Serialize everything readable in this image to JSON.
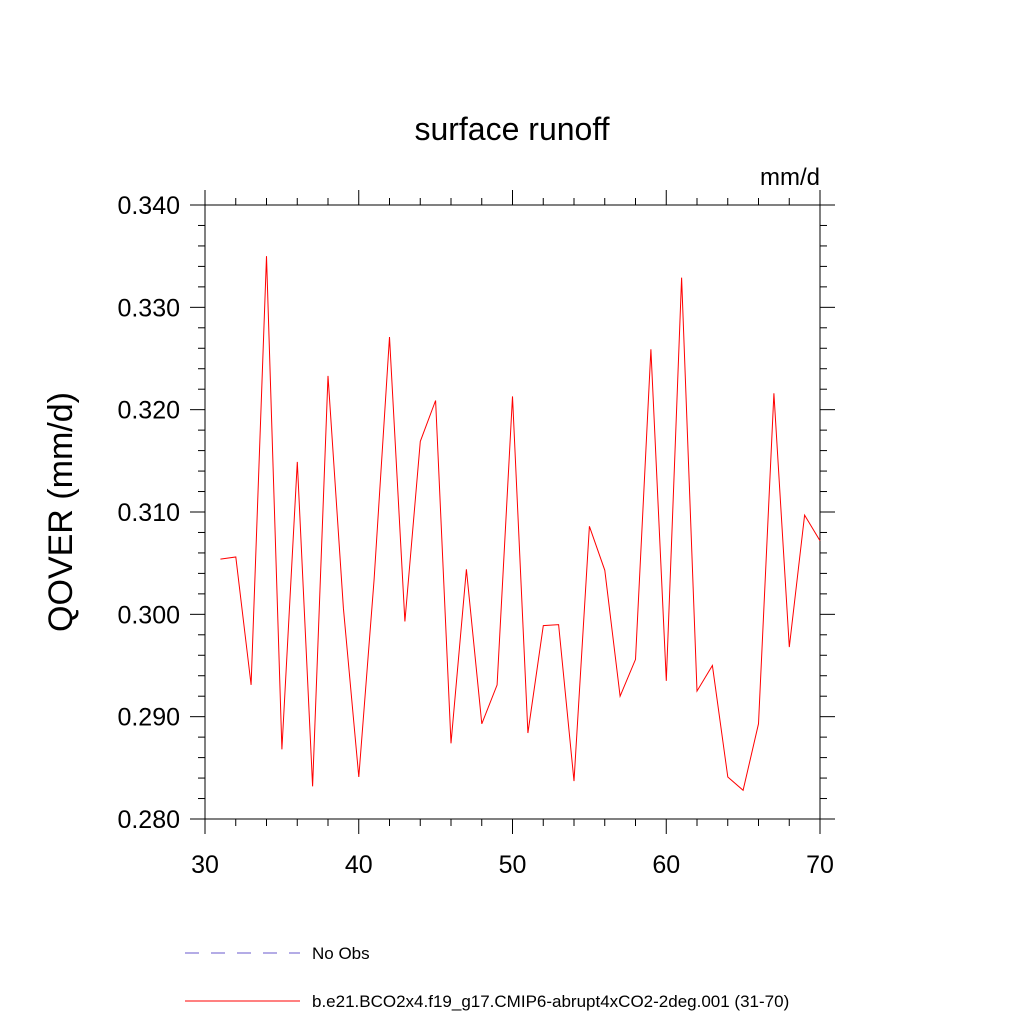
{
  "chart_data": {
    "type": "line",
    "title": "surface runoff",
    "units_label": "mm/d",
    "ylabel": "QOVER  (mm/d)",
    "xlabel": "",
    "xlim": [
      30,
      70
    ],
    "ylim": [
      0.28,
      0.34
    ],
    "x_ticks": [
      30,
      40,
      50,
      60,
      70
    ],
    "y_ticks": [
      "0.280",
      "0.290",
      "0.300",
      "0.310",
      "0.320",
      "0.330",
      "0.340"
    ],
    "x_tick_labels": [
      "30",
      "40",
      "50",
      "60",
      "70"
    ],
    "series": [
      {
        "name": "b.e21.BCO2x4.f19_g17.CMIP6-abrupt4xCO2-2deg.001 (31-70)",
        "color": "#ff0000",
        "x": [
          31,
          32,
          33,
          34,
          35,
          36,
          37,
          38,
          39,
          40,
          41,
          42,
          43,
          44,
          45,
          46,
          47,
          48,
          49,
          50,
          51,
          52,
          53,
          54,
          55,
          56,
          57,
          58,
          59,
          60,
          61,
          62,
          63,
          64,
          65,
          66,
          67,
          68,
          69,
          70
        ],
        "y": [
          0.3054,
          0.3056,
          0.2931,
          0.335,
          0.2868,
          0.3149,
          0.2832,
          0.3233,
          0.3006,
          0.2841,
          0.3034,
          0.3271,
          0.2993,
          0.3169,
          0.3209,
          0.2874,
          0.3044,
          0.2893,
          0.2931,
          0.3213,
          0.2884,
          0.2989,
          0.299,
          0.2837,
          0.3086,
          0.3043,
          0.292,
          0.2956,
          0.3259,
          0.2935,
          0.3329,
          0.2925,
          0.295,
          0.2841,
          0.2828,
          0.2893,
          0.3216,
          0.2968,
          0.3097,
          0.3072
        ]
      }
    ],
    "legend": [
      {
        "label": "No Obs",
        "style": "dashed",
        "color": "#6a5acd"
      },
      {
        "label": "b.e21.BCO2x4.f19_g17.CMIP6-abrupt4xCO2-2deg.001 (31-70)",
        "style": "solid",
        "color": "#ff0000"
      }
    ],
    "legend_placement": "bottom",
    "grid": false
  }
}
